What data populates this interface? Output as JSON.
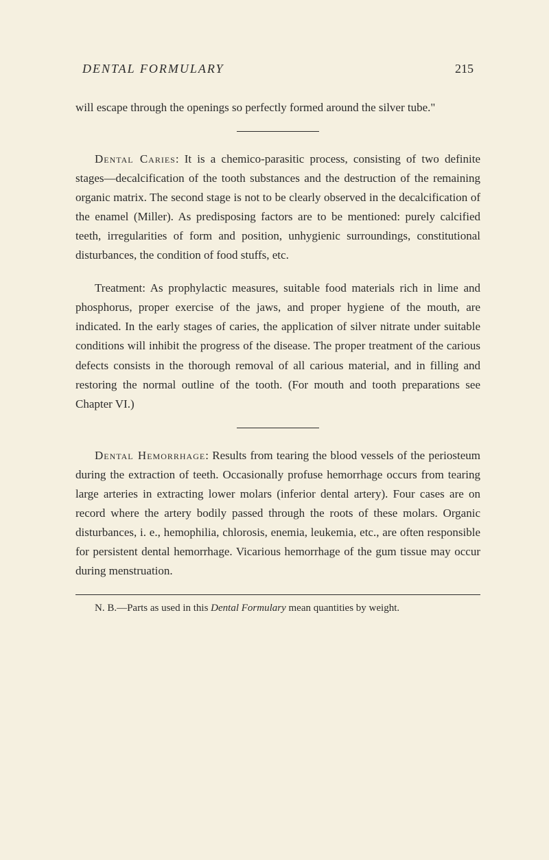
{
  "header": {
    "title": "DENTAL FORMULARY",
    "pageNumber": "215"
  },
  "intro": "will escape through the openings so perfectly formed around the silver tube.\"",
  "caries": {
    "heading": "Dental Caries",
    "p1": ": It is a chemico-parasitic process, consisting of two definite stages—decalcification of the tooth substances and the destruction of the remaining organic matrix. The second stage is not to be clearly observed in the decalcification of the enamel (Miller). As predisposing factors are to be mentioned: purely calcified teeth, irregularities of form and position, unhygienic surroundings, constitutional disturbances, the condition of food stuffs, etc.",
    "p2": "Treatment: As prophylactic measures, suitable food materials rich in lime and phosphorus, proper exercise of the jaws, and proper hygiene of the mouth, are indicated. In the early stages of caries, the application of silver nitrate under suitable conditions will inhibit the progress of the disease. The proper treatment of the carious defects consists in the thorough removal of all carious material, and in filling and restoring the normal outline of the tooth. (For mouth and tooth preparations see Chapter VI.)"
  },
  "hemorrhage": {
    "heading": "Dental Hemorrhage",
    "p1": ": Results from tearing the blood vessels of the periosteum during the extraction of teeth. Occasionally profuse hemorrhage occurs from tearing large arteries in extracting lower molars (inferior dental artery). Four cases are on record where the artery bodily passed through the roots of these molars. Organic disturbances, i. e., hemophilia, chlorosis, enemia, leukemia, etc., are often responsible for persistent dental hemorrhage. Vicarious hemorrhage of the gum tissue may occur during menstruation."
  },
  "footnote": {
    "prefix": "N. B.—Parts as used in this ",
    "italic": "Dental Formulary",
    "suffix": " mean quantities by weight."
  }
}
